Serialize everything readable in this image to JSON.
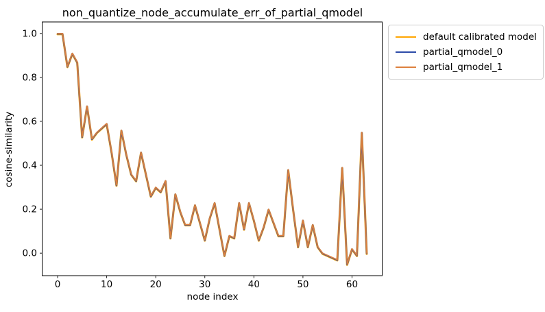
{
  "figure": {
    "title": "non_quantize_node_accumulate_err_of_partial_qmodel",
    "xlabel": "node index",
    "ylabel": "cosine-similarity"
  },
  "legend": {
    "items": [
      {
        "label": "default calibrated model",
        "color": "#ffa500"
      },
      {
        "label": "partial_qmodel_0",
        "color": "#2b4aa8"
      },
      {
        "label": "partial_qmodel_1",
        "color": "#dd803d"
      }
    ]
  },
  "chart_data": {
    "type": "line",
    "title": "non_quantize_node_accumulate_err_of_partial_qmodel",
    "xlabel": "node index",
    "ylabel": "cosine-similarity",
    "x": [
      0,
      1,
      2,
      3,
      4,
      5,
      6,
      7,
      8,
      9,
      10,
      11,
      12,
      13,
      14,
      15,
      16,
      17,
      18,
      19,
      20,
      21,
      22,
      23,
      24,
      25,
      26,
      27,
      28,
      29,
      30,
      31,
      32,
      33,
      34,
      35,
      36,
      37,
      38,
      39,
      40,
      41,
      42,
      43,
      44,
      45,
      46,
      47,
      48,
      49,
      50,
      51,
      52,
      53,
      54,
      55,
      56,
      57,
      58,
      59,
      60,
      61,
      62,
      63
    ],
    "series": [
      {
        "name": "default calibrated model",
        "color": "#ffa500",
        "values": [
          1.0,
          1.0,
          0.85,
          0.91,
          0.87,
          0.53,
          0.67,
          0.52,
          0.55,
          0.57,
          0.59,
          0.46,
          0.31,
          0.56,
          0.45,
          0.36,
          0.33,
          0.46,
          0.36,
          0.26,
          0.3,
          0.28,
          0.33,
          0.07,
          0.27,
          0.19,
          0.13,
          0.13,
          0.22,
          0.14,
          0.06,
          0.16,
          0.23,
          0.11,
          -0.01,
          0.08,
          0.07,
          0.23,
          0.11,
          0.23,
          0.15,
          0.06,
          0.12,
          0.2,
          0.14,
          0.08,
          0.08,
          0.38,
          0.2,
          0.03,
          0.15,
          0.03,
          0.13,
          0.03,
          0.0,
          -0.01,
          -0.02,
          -0.03,
          0.39,
          -0.05,
          0.02,
          -0.01,
          0.55,
          0.0
        ]
      },
      {
        "name": "partial_qmodel_0",
        "color": "#2b4aa8",
        "values": [
          1.0,
          1.0,
          0.85,
          0.91,
          0.87,
          0.53,
          0.67,
          0.52,
          0.55,
          0.57,
          0.59,
          0.46,
          0.31,
          0.56,
          0.45,
          0.36,
          0.33,
          0.46,
          0.36,
          0.26,
          0.3,
          0.28,
          0.33,
          0.07,
          0.27,
          0.19,
          0.13,
          0.13,
          0.22,
          0.14,
          0.06,
          0.16,
          0.23,
          0.11,
          -0.01,
          0.08,
          0.07,
          0.23,
          0.11,
          0.23,
          0.15,
          0.06,
          0.12,
          0.2,
          0.14,
          0.08,
          0.08,
          0.38,
          0.2,
          0.03,
          0.15,
          0.03,
          0.13,
          0.03,
          0.0,
          -0.01,
          -0.02,
          -0.03,
          0.39,
          -0.05,
          0.02,
          -0.01,
          0.55,
          0.0
        ]
      },
      {
        "name": "partial_qmodel_1",
        "color": "#dd803d",
        "values": [
          1.0,
          1.0,
          0.85,
          0.91,
          0.87,
          0.53,
          0.67,
          0.52,
          0.55,
          0.57,
          0.59,
          0.46,
          0.31,
          0.56,
          0.45,
          0.36,
          0.33,
          0.46,
          0.36,
          0.26,
          0.3,
          0.28,
          0.33,
          0.07,
          0.27,
          0.19,
          0.13,
          0.13,
          0.22,
          0.14,
          0.06,
          0.16,
          0.23,
          0.11,
          -0.01,
          0.08,
          0.07,
          0.23,
          0.11,
          0.23,
          0.15,
          0.06,
          0.12,
          0.2,
          0.14,
          0.08,
          0.08,
          0.38,
          0.2,
          0.03,
          0.15,
          0.03,
          0.13,
          0.03,
          0.0,
          -0.01,
          -0.02,
          -0.03,
          0.39,
          -0.05,
          0.02,
          -0.01,
          0.55,
          0.0
        ]
      }
    ],
    "xticks": [
      0,
      10,
      20,
      30,
      40,
      50,
      60
    ],
    "yticks": [
      0.0,
      0.2,
      0.4,
      0.6,
      0.8,
      1.0
    ],
    "xlim": [
      -3.15,
      66.15
    ],
    "ylim": [
      -0.1025,
      1.0525
    ],
    "grid": false,
    "legend_position": "outside-top-right"
  }
}
